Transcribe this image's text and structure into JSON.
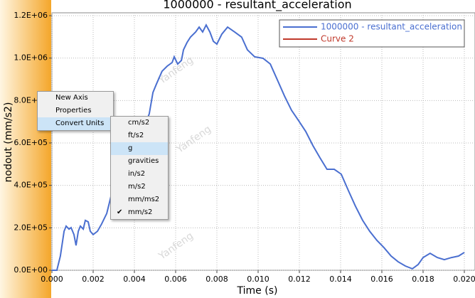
{
  "chart_data": {
    "type": "line",
    "title": "1000000 - resultant_acceleration",
    "x_label": "Time (s)",
    "y_label": "nodout (mm/s2)",
    "x": [
      0,
      0.00024,
      0.00041,
      0.00059,
      0.00069,
      0.00083,
      0.00093,
      0.00107,
      0.00117,
      0.00128,
      0.00138,
      0.00152,
      0.00162,
      0.00176,
      0.00186,
      0.002,
      0.00221,
      0.00241,
      0.00266,
      0.003,
      0.00369,
      0.00438,
      0.00472,
      0.0049,
      0.00507,
      0.00534,
      0.00559,
      0.00583,
      0.00593,
      0.0061,
      0.00628,
      0.00638,
      0.00655,
      0.00672,
      0.00697,
      0.00714,
      0.00731,
      0.00748,
      0.00766,
      0.00783,
      0.008,
      0.00824,
      0.00852,
      0.00886,
      0.0092,
      0.00948,
      0.00983,
      0.01024,
      0.01059,
      0.01093,
      0.01128,
      0.01162,
      0.01197,
      0.01231,
      0.01266,
      0.013,
      0.01334,
      0.01369,
      0.01403,
      0.01438,
      0.01472,
      0.01507,
      0.01541,
      0.01576,
      0.0161,
      0.01645,
      0.01679,
      0.01714,
      0.01748,
      0.01776,
      0.018,
      0.01834,
      0.01869,
      0.01903,
      0.01938,
      0.01972,
      0.02
    ],
    "series": [
      {
        "name": "1000000 - resultant_acceleration",
        "color": "#4a6fd0",
        "values": [
          0,
          0,
          67000,
          184000,
          208000,
          194000,
          201000,
          168000,
          117000,
          184000,
          208000,
          194000,
          235000,
          228000,
          184000,
          168000,
          184000,
          218000,
          268000,
          402000,
          536000,
          654000,
          737000,
          838000,
          878000,
          938000,
          962000,
          979000,
          1006000,
          972000,
          989000,
          1039000,
          1073000,
          1099000,
          1123000,
          1146000,
          1123000,
          1156000,
          1123000,
          1079000,
          1066000,
          1113000,
          1146000,
          1123000,
          1099000,
          1039000,
          1006000,
          999000,
          972000,
          898000,
          821000,
          754000,
          704000,
          654000,
          587000,
          530000,
          476000,
          476000,
          453000,
          375000,
          302000,
          235000,
          184000,
          141000,
          107000,
          67000,
          40000,
          20000,
          7000,
          27000,
          60000,
          80000,
          60000,
          50000,
          60000,
          67000,
          84000
        ]
      },
      {
        "name": "Curve 2",
        "color": "#c0392b",
        "values": [
          null,
          null,
          null,
          null,
          null,
          null,
          null,
          null,
          null,
          null,
          null,
          null,
          null,
          null,
          null,
          null,
          null,
          null,
          null,
          null,
          null,
          null,
          null,
          null,
          null,
          null,
          null,
          null,
          null,
          null,
          null,
          null,
          null,
          null,
          null,
          null,
          null,
          null,
          null,
          null,
          null,
          null,
          null,
          null,
          null,
          null,
          null,
          null,
          null,
          null,
          null,
          null,
          null,
          null,
          null,
          null,
          null,
          null,
          null,
          null,
          null,
          null,
          null,
          null,
          null,
          null,
          null,
          null,
          null,
          null,
          null,
          null,
          null,
          null,
          null,
          null,
          null
        ]
      }
    ],
    "xlim": [
      0,
      0.02
    ],
    "ylim": [
      0,
      1200000
    ],
    "xticks": [
      {
        "value": 0,
        "label": "0.000"
      },
      {
        "value": 0.002,
        "label": "0.002"
      },
      {
        "value": 0.004,
        "label": "0.004"
      },
      {
        "value": 0.006,
        "label": "0.006"
      },
      {
        "value": 0.008,
        "label": "0.008"
      },
      {
        "value": 0.01,
        "label": "0.010"
      },
      {
        "value": 0.012,
        "label": "0.012"
      },
      {
        "value": 0.014,
        "label": "0.014"
      },
      {
        "value": 0.016,
        "label": "0.016"
      },
      {
        "value": 0.018,
        "label": "0.018"
      },
      {
        "value": 0.02,
        "label": "0.020"
      }
    ],
    "yticks": [
      {
        "value": 0,
        "label": "0.0E+00"
      },
      {
        "value": 200000,
        "label": "2.0E+05"
      },
      {
        "value": 400000,
        "label": "4.0E+05"
      },
      {
        "value": 600000,
        "label": "6.0E+05"
      },
      {
        "value": 800000,
        "label": "8.0E+05"
      },
      {
        "value": 1000000,
        "label": "1.0E+06"
      },
      {
        "value": 1200000,
        "label": "1.2E+06"
      }
    ],
    "grid": true,
    "legend": "upper right"
  },
  "watermark": "Yanfeng",
  "context_menu": {
    "items": [
      "New Axis",
      "Properties",
      "Convert Units"
    ]
  },
  "submenu": {
    "items": [
      "cm/s2",
      "ft/s2",
      "g",
      "gravities",
      "in/s2",
      "m/s2",
      "mm/ms2",
      "mm/s2"
    ]
  }
}
